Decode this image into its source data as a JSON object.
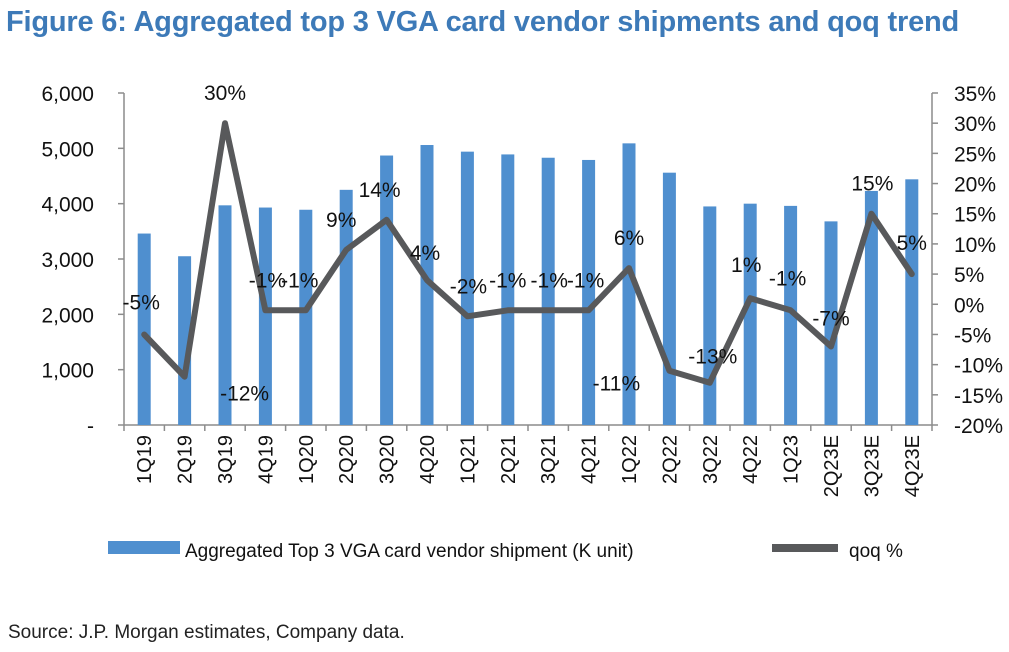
{
  "title": "Figure 6: Aggregated top 3 VGA card vendor shipments and qoq trend",
  "source": "Source: J.P. Morgan estimates, Company data.",
  "colors": {
    "title": "#3d7ab8",
    "bars": "#4f8fcf",
    "line": "#58595b",
    "axis": "#8c8c8c"
  },
  "chart_data": {
    "type": "bar",
    "categories": [
      "1Q19",
      "2Q19",
      "3Q19",
      "4Q19",
      "1Q20",
      "2Q20",
      "3Q20",
      "4Q20",
      "1Q21",
      "2Q21",
      "3Q21",
      "4Q21",
      "1Q22",
      "2Q22",
      "3Q22",
      "4Q22",
      "1Q23",
      "2Q23E",
      "3Q23E",
      "4Q23E"
    ],
    "series": [
      {
        "name": "Aggregated Top 3 VGA card vendor shipment (K unit)",
        "type": "bar",
        "axis": "left",
        "values": [
          3460,
          3050,
          3970,
          3930,
          3890,
          4250,
          4870,
          5060,
          4940,
          4890,
          4830,
          4790,
          5090,
          4560,
          3950,
          4000,
          3960,
          3680,
          4230,
          4440
        ]
      },
      {
        "name": "qoq %",
        "type": "line",
        "axis": "right",
        "values": [
          -5,
          -12,
          30,
          -1,
          -1,
          9,
          14,
          4,
          -2,
          -1,
          -1,
          -1,
          6,
          -11,
          -13,
          1,
          -1,
          -7,
          15,
          5
        ],
        "labels": [
          "-5%",
          "-12%",
          "30%",
          "-1%",
          "-1%",
          "9%",
          "14%",
          "4%",
          "-2%",
          "-1%",
          "-1%",
          "-1%",
          "6%",
          "-11%",
          "-13%",
          "1%",
          "-1%",
          "-7%",
          "15%",
          "5%"
        ]
      }
    ],
    "y_left": {
      "ylim": [
        0,
        6000
      ],
      "ticks": [
        0,
        1000,
        2000,
        3000,
        4000,
        5000,
        6000
      ],
      "tick_labels": [
        "-",
        "1,000",
        "2,000",
        "3,000",
        "4,000",
        "5,000",
        "6,000"
      ]
    },
    "y_right": {
      "ylim": [
        -20,
        35
      ],
      "ticks": [
        -20,
        -15,
        -10,
        -5,
        0,
        5,
        10,
        15,
        20,
        25,
        30,
        35
      ],
      "tick_labels": [
        "-20%",
        "-15%",
        "-10%",
        "-5%",
        "0%",
        "5%",
        "10%",
        "15%",
        "20%",
        "25%",
        "30%",
        "35%"
      ]
    },
    "xlabel": "",
    "ylabel": "",
    "grid": false,
    "legend_position": "bottom"
  }
}
